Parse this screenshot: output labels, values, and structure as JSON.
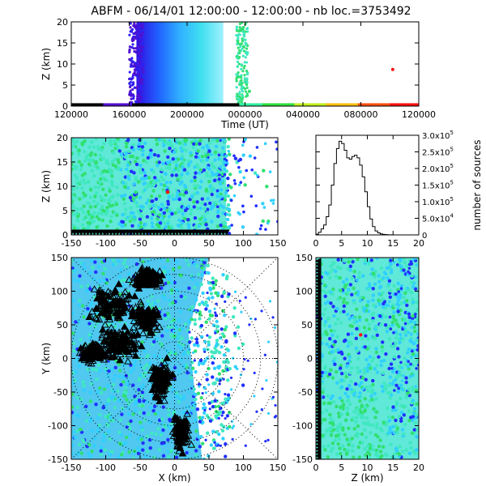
{
  "title": "ABFM - 06/14/01 12:00:00 - 12:00:00 - nb loc.=3753492",
  "chart_data": [
    {
      "id": "time-height",
      "type": "scatter",
      "xlabel": "Time (UT)",
      "ylabel": "Z (km)",
      "x_tick_labels": [
        "120000",
        "160000",
        "200000",
        "000000",
        "040000",
        "080000",
        "120000"
      ],
      "x_tick_positions": [
        0,
        40000,
        80000,
        120000,
        160000,
        200000,
        240000
      ],
      "xlim": [
        0,
        240000
      ],
      "ylim": [
        0,
        20
      ],
      "y_ticks": [
        0,
        5,
        10,
        15,
        20
      ],
      "description_colors": "time-coded rainbow (purple→blue→cyan→green→yellow→red)"
    },
    {
      "id": "x-z",
      "type": "scatter",
      "xlabel": "",
      "ylabel": "Z (km)",
      "xlim": [
        -150,
        150
      ],
      "x_ticks": [
        -150,
        -100,
        -50,
        0,
        50,
        100,
        150
      ],
      "ylim": [
        0,
        20
      ],
      "y_ticks": [
        0,
        5,
        10,
        15,
        20
      ]
    },
    {
      "id": "altitude-histogram",
      "type": "line",
      "xlabel": "",
      "ylabel": "number of sources",
      "xlim": [
        0,
        20
      ],
      "x_ticks": [
        0,
        5,
        10,
        15,
        20
      ],
      "ylim": [
        0,
        300000
      ],
      "y_tick_labels": [
        "0",
        "5.0x10^4",
        "1.0x10^5",
        "1.5x10^5",
        "2.0x10^5",
        "2.5x10^5",
        "3.0x10^5"
      ],
      "y_ticks": [
        0,
        50000,
        100000,
        150000,
        200000,
        250000,
        300000
      ],
      "x": [
        0.5,
        1,
        1.5,
        2,
        2.5,
        3,
        3.5,
        4,
        4.5,
        5,
        5.5,
        6,
        6.5,
        7,
        7.5,
        8,
        8.5,
        9,
        9.5,
        10,
        10.5,
        11,
        11.5,
        12,
        12.5,
        13,
        13.5,
        14,
        14.5,
        15,
        16,
        17,
        18,
        19,
        20
      ],
      "values": [
        2000,
        8000,
        18000,
        30000,
        55000,
        90000,
        150000,
        215000,
        260000,
        282000,
        275000,
        255000,
        232000,
        228000,
        236000,
        240000,
        232000,
        210000,
        175000,
        130000,
        85000,
        48000,
        25000,
        12000,
        6000,
        3000,
        1500,
        800,
        400,
        200,
        100,
        50,
        20,
        10,
        0
      ]
    },
    {
      "id": "x-y",
      "type": "scatter",
      "xlabel": "X (km)",
      "ylabel": "Y (km)",
      "xlim": [
        -150,
        150
      ],
      "x_ticks": [
        -150,
        -100,
        -50,
        0,
        50,
        100,
        150
      ],
      "ylim": [
        -150,
        150
      ],
      "y_ticks": [
        -150,
        -100,
        -50,
        0,
        50,
        100,
        150
      ],
      "range_rings_km": [
        25,
        50,
        75,
        100,
        125,
        150
      ]
    },
    {
      "id": "z-y",
      "type": "scatter",
      "xlabel": "Z (km)",
      "ylabel": "",
      "xlim": [
        0,
        20
      ],
      "x_ticks": [
        0,
        5,
        10,
        15,
        20
      ],
      "ylim": [
        -150,
        150
      ],
      "y_ticks": [
        -150,
        -100,
        -50,
        0,
        50,
        100,
        150
      ]
    }
  ],
  "colors": {
    "axis": "#000000",
    "purple": "#7a00d6",
    "blue": "#2030ff",
    "cyan": "#30d0ff",
    "teal": "#40e8c0",
    "green": "#30e070",
    "red": "#ff1010",
    "station": "#000000"
  }
}
